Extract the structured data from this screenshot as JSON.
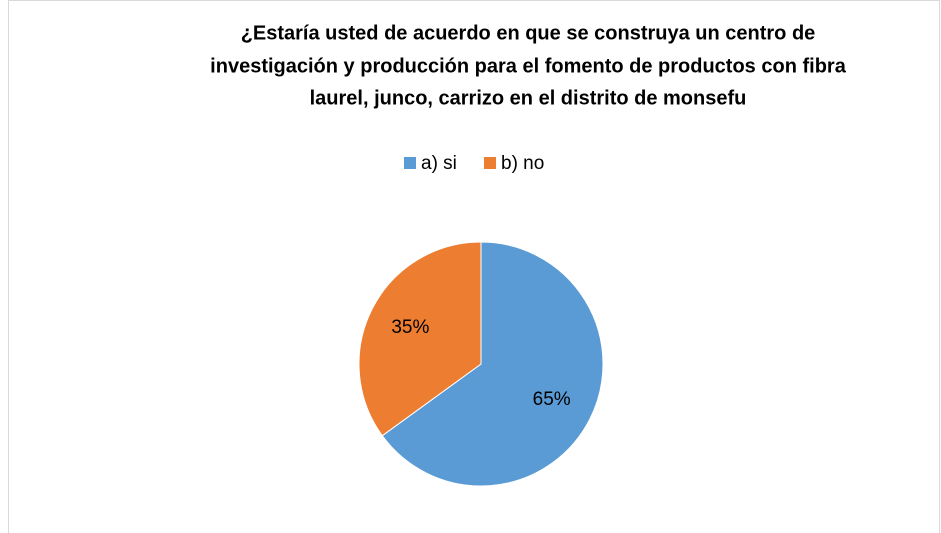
{
  "chart_data": {
    "type": "pie",
    "title": [
      "¿Estaría usted de acuerdo en que se construya un centro de",
      "investigación y producción para el fomento de productos con fibra",
      "laurel, junco, carrizo en el distrito  de monsefu"
    ],
    "categories": [
      "a) si",
      "b) no"
    ],
    "values": [
      65,
      35
    ],
    "value_labels": [
      "65%",
      "35%"
    ],
    "colors": [
      "#5b9bd5",
      "#ed7d31"
    ],
    "legend": "top"
  }
}
